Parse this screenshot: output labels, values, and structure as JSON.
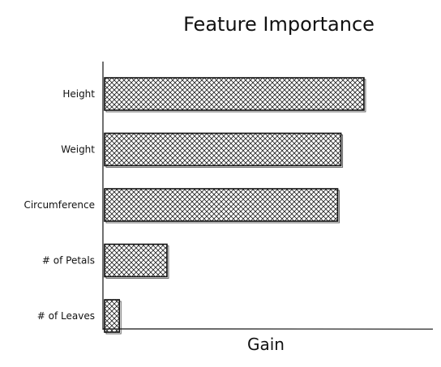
{
  "chart_data": {
    "type": "bar",
    "orientation": "horizontal",
    "title": "Feature Importance",
    "xlabel": "Gain",
    "ylabel": "",
    "categories": [
      "Height",
      "Weight",
      "Circumference",
      "# of Petals",
      "# of Leaves"
    ],
    "values": [
      0.79,
      0.72,
      0.71,
      0.19,
      0.045
    ],
    "xlim": [
      0,
      1
    ],
    "grid": false,
    "legend": "none",
    "bar_color": "#111111",
    "fill_pattern": "crosshatch"
  }
}
